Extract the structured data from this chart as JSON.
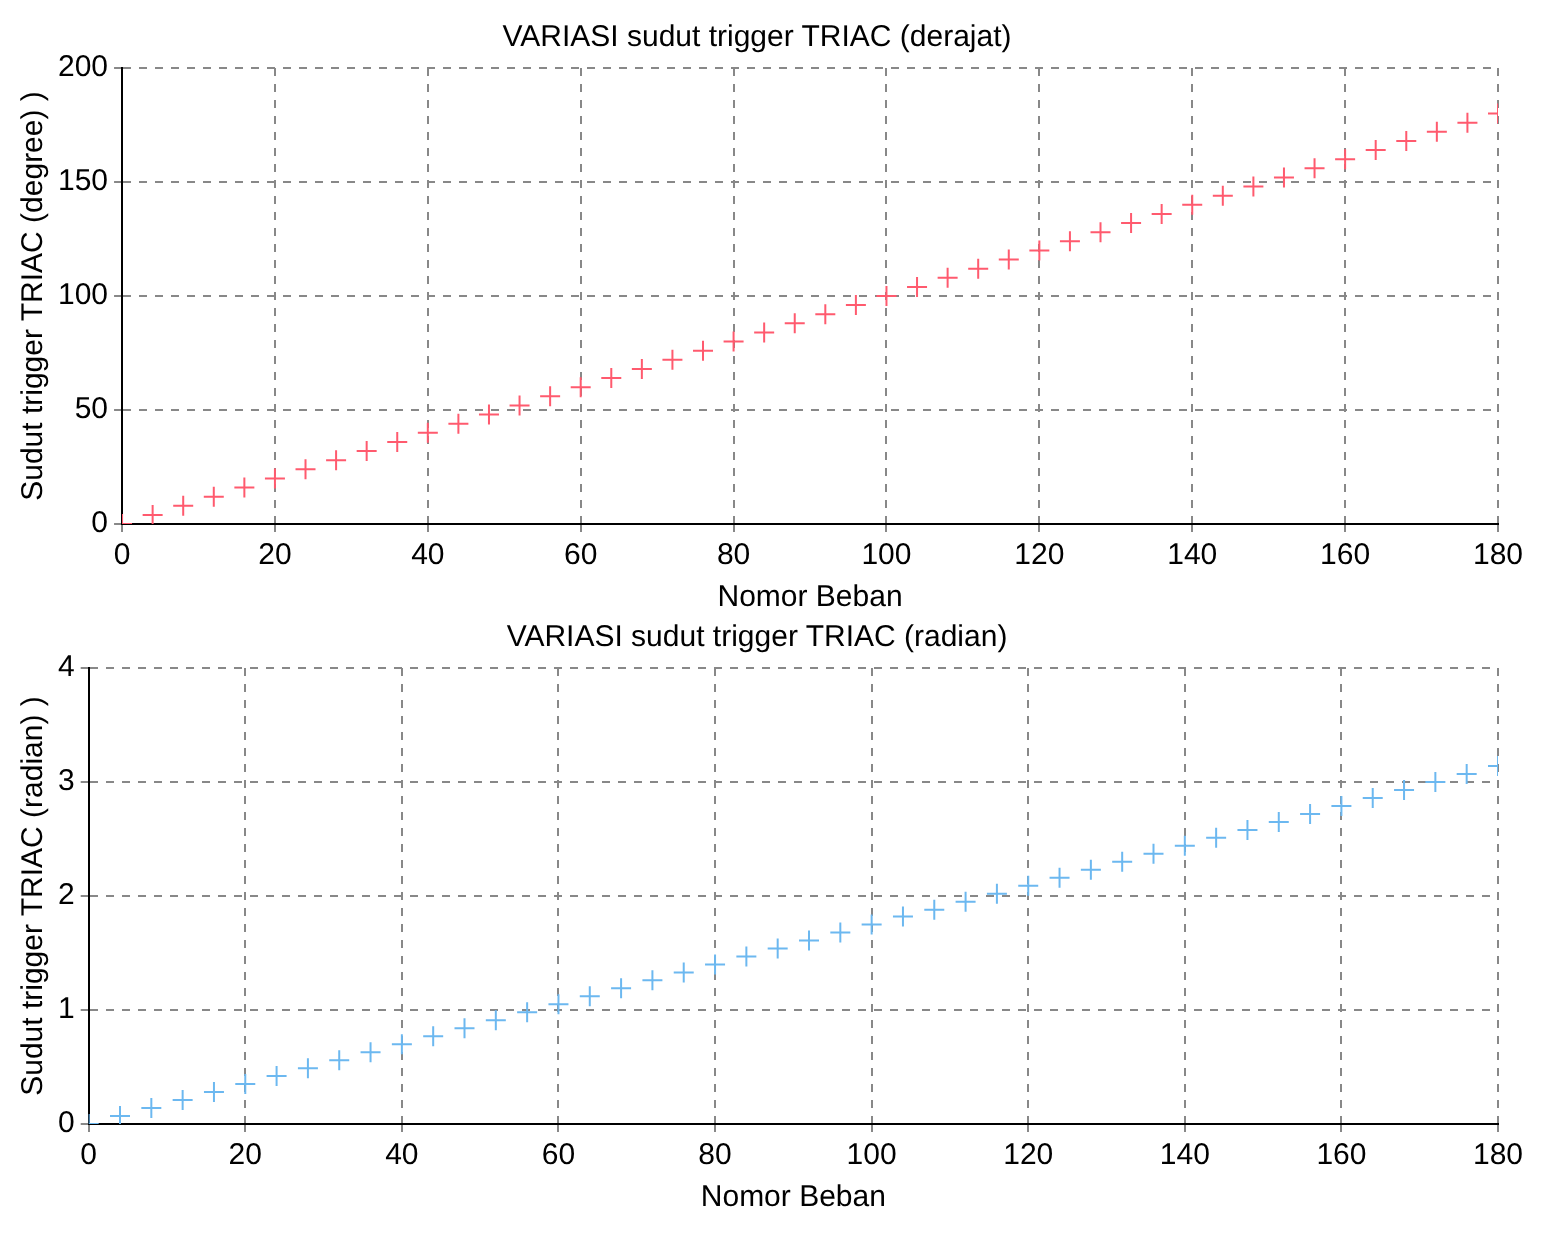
{
  "chart_data": [
    {
      "type": "scatter",
      "title": "VARIASI sudut trigger TRIAC (derajat)",
      "xlabel": "Nomor Beban",
      "ylabel": "Sudut trigger TRIAC (degree) )",
      "x": [
        0,
        4,
        8,
        12,
        16,
        20,
        24,
        28,
        32,
        36,
        40,
        44,
        48,
        52,
        56,
        60,
        64,
        68,
        72,
        76,
        80,
        84,
        88,
        92,
        96,
        100,
        104,
        108,
        112,
        116,
        120,
        124,
        128,
        132,
        136,
        140,
        144,
        148,
        152,
        156,
        160,
        164,
        168,
        172,
        176,
        180
      ],
      "series": [
        {
          "color": "#ff5a6e",
          "values": [
            0,
            4,
            8,
            12,
            16,
            20,
            24,
            28,
            32,
            36,
            40,
            44,
            48,
            52,
            56,
            60,
            64,
            68,
            72,
            76,
            80,
            84,
            88,
            92,
            96,
            100,
            104,
            108,
            112,
            116,
            120,
            124,
            128,
            132,
            136,
            140,
            144,
            148,
            152,
            156,
            160,
            164,
            168,
            172,
            176,
            180
          ]
        }
      ],
      "xlim": [
        0,
        180
      ],
      "xticks": [
        0,
        20,
        40,
        60,
        80,
        100,
        120,
        140,
        160,
        180
      ],
      "ylim": [
        0,
        200
      ],
      "yticks": [
        0,
        50,
        100,
        150,
        200
      ],
      "grid": true,
      "marker": "cross"
    },
    {
      "type": "scatter",
      "title": "VARIASI sudut trigger TRIAC (radian)",
      "xlabel": "Nomor Beban",
      "ylabel": "Sudut trigger TRIAC (radian) )",
      "x": [
        0,
        4,
        8,
        12,
        16,
        20,
        24,
        28,
        32,
        36,
        40,
        44,
        48,
        52,
        56,
        60,
        64,
        68,
        72,
        76,
        80,
        84,
        88,
        92,
        96,
        100,
        104,
        108,
        112,
        116,
        120,
        124,
        128,
        132,
        136,
        140,
        144,
        148,
        152,
        156,
        160,
        164,
        168,
        172,
        176,
        180
      ],
      "series": [
        {
          "color": "#6cb8f0",
          "values": [
            0,
            0.07,
            0.14,
            0.21,
            0.28,
            0.35,
            0.42,
            0.49,
            0.56,
            0.63,
            0.7,
            0.77,
            0.84,
            0.91,
            0.98,
            1.05,
            1.12,
            1.19,
            1.26,
            1.33,
            1.4,
            1.47,
            1.54,
            1.61,
            1.68,
            1.75,
            1.82,
            1.88,
            1.95,
            2.02,
            2.09,
            2.16,
            2.23,
            2.3,
            2.37,
            2.44,
            2.51,
            2.58,
            2.65,
            2.72,
            2.79,
            2.86,
            2.93,
            3.0,
            3.07,
            3.14
          ]
        }
      ],
      "xlim": [
        0,
        180
      ],
      "xticks": [
        0,
        20,
        40,
        60,
        80,
        100,
        120,
        140,
        160,
        180
      ],
      "ylim": [
        0,
        4
      ],
      "yticks": [
        0,
        1,
        2,
        3,
        4
      ],
      "grid": true,
      "marker": "cross"
    }
  ]
}
